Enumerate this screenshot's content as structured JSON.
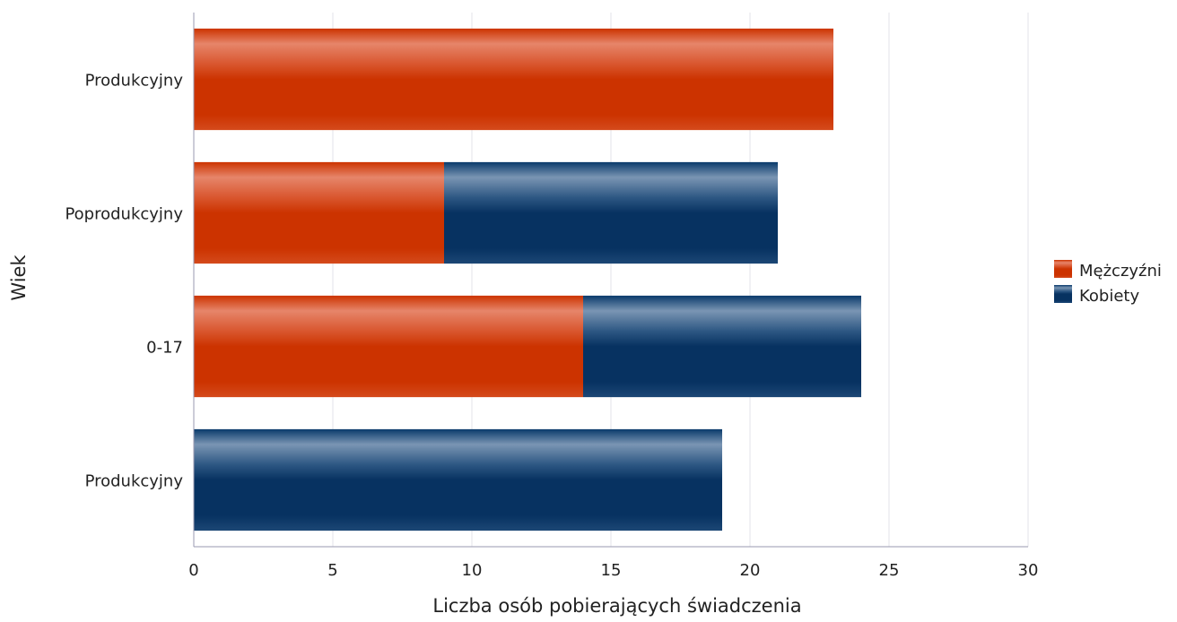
{
  "chart_data": {
    "type": "bar",
    "orientation": "horizontal",
    "stacked": true,
    "title": "",
    "xlabel": "Liczba osób pobierających świadczenia",
    "ylabel": "Wiek",
    "xlim": [
      0,
      30
    ],
    "x_ticks": [
      0,
      5,
      10,
      15,
      20,
      25,
      30
    ],
    "grid": "vertical",
    "legend_position": "right",
    "categories": [
      "Produkcyjny",
      "Poprodukcyjny",
      "0-17",
      "Produkcyjny"
    ],
    "series": [
      {
        "name": "Mężczyźni",
        "color": "#cc3300",
        "values": [
          23,
          9,
          14,
          0
        ]
      },
      {
        "name": "Kobiety",
        "color": "#0a3a6b",
        "values": [
          0,
          12,
          10,
          19
        ]
      }
    ]
  }
}
